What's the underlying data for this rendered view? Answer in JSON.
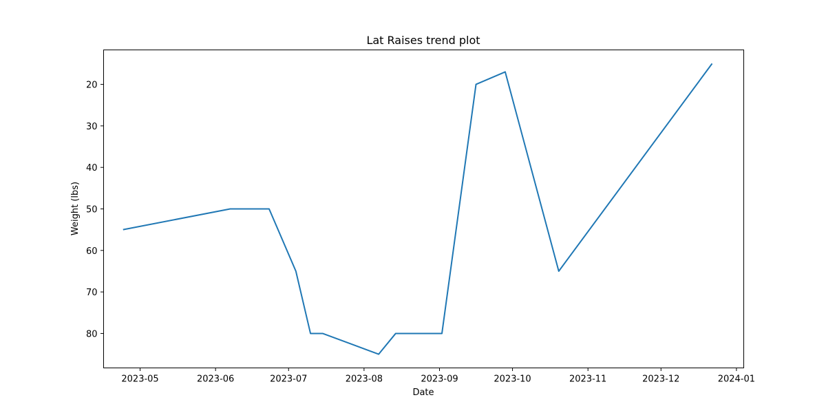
{
  "chart_data": {
    "type": "line",
    "title": "Lat Raises trend plot",
    "xlabel": "Date",
    "ylabel": "Weight (lbs)",
    "y_inverted": true,
    "grid": false,
    "legend": "none",
    "xlim": [
      "2023-04-16",
      "2024-01-04"
    ],
    "ylim": [
      88.3,
      11.7
    ],
    "x_ticks": [
      "2023-05-01",
      "2023-06-01",
      "2023-07-01",
      "2023-08-01",
      "2023-09-01",
      "2023-10-01",
      "2023-11-01",
      "2023-12-01",
      "2024-01-01"
    ],
    "x_tick_labels": [
      "2023-05",
      "2023-06",
      "2023-07",
      "2023-08",
      "2023-09",
      "2023-10",
      "2023-11",
      "2023-12",
      "2024-01"
    ],
    "y_ticks": [
      20,
      30,
      40,
      50,
      60,
      70,
      80
    ],
    "y_tick_labels": [
      "20",
      "30",
      "40",
      "50",
      "60",
      "70",
      "80"
    ],
    "series": [
      {
        "color": "#1f77b4",
        "points": [
          {
            "x": "2023-04-24",
            "y": 55
          },
          {
            "x": "2023-06-07",
            "y": 50
          },
          {
            "x": "2023-06-23",
            "y": 50
          },
          {
            "x": "2023-07-04",
            "y": 65
          },
          {
            "x": "2023-07-10",
            "y": 80
          },
          {
            "x": "2023-07-15",
            "y": 80
          },
          {
            "x": "2023-08-07",
            "y": 85
          },
          {
            "x": "2023-08-14",
            "y": 80
          },
          {
            "x": "2023-09-02",
            "y": 80
          },
          {
            "x": "2023-09-16",
            "y": 20
          },
          {
            "x": "2023-09-28",
            "y": 17
          },
          {
            "x": "2023-10-20",
            "y": 65
          },
          {
            "x": "2023-12-22",
            "y": 15
          }
        ]
      }
    ]
  }
}
